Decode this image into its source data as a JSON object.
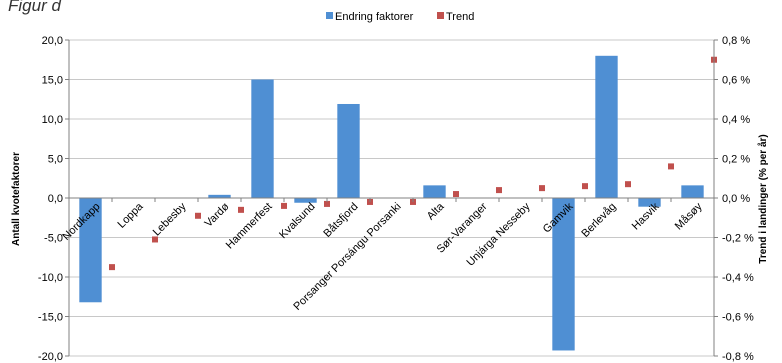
{
  "figure_label": "Figur d",
  "chart_data": {
    "type": "bar",
    "categories": [
      "Nordkapp",
      "Loppa",
      "Lebesby",
      "Vardø",
      "Hammerfest",
      "Kvalsund",
      "Båtsfjord",
      "Porsanger Porsángu Porsanki",
      "Alta",
      "Sør-Varanger",
      "Unjárga Nesseby",
      "Gamvik",
      "Berlevåg",
      "Hasvik",
      "Måsøy"
    ],
    "series": [
      {
        "name": "Endring faktorer",
        "type": "bar",
        "axis": "left",
        "color": "#4f8fd3",
        "values": [
          -13.2,
          0,
          0,
          0.4,
          15.0,
          -0.6,
          11.9,
          0,
          1.6,
          0,
          0,
          -19.3,
          18.0,
          -1.1,
          1.6
        ]
      },
      {
        "name": "Trend",
        "type": "scatter",
        "axis": "right",
        "color": "#c0504d",
        "values": [
          -0.35,
          -0.21,
          -0.09,
          -0.06,
          -0.04,
          -0.03,
          -0.02,
          -0.02,
          0.02,
          0.04,
          0.05,
          0.06,
          0.07,
          0.16,
          0.7
        ]
      }
    ],
    "ylabel": "Antall kvotefaktorer",
    "ylabel_right": "Trend i landinger (% per år)",
    "ylim": [
      -20,
      20
    ],
    "ylim_right": [
      -0.8,
      0.8
    ],
    "yticks": [
      "20,0",
      "15,0",
      "10,0",
      "5,0",
      "0,0",
      "-5,0",
      "-10,0",
      "-15,0",
      "-20,0"
    ],
    "yticks_right": [
      "0,8 %",
      "0,6 %",
      "0,4 %",
      "0,2 %",
      "0,0 %",
      "-0,2 %",
      "-0,4 %",
      "-0,6 %",
      "-0,8 %"
    ],
    "grid": true,
    "legend_position": "top"
  }
}
